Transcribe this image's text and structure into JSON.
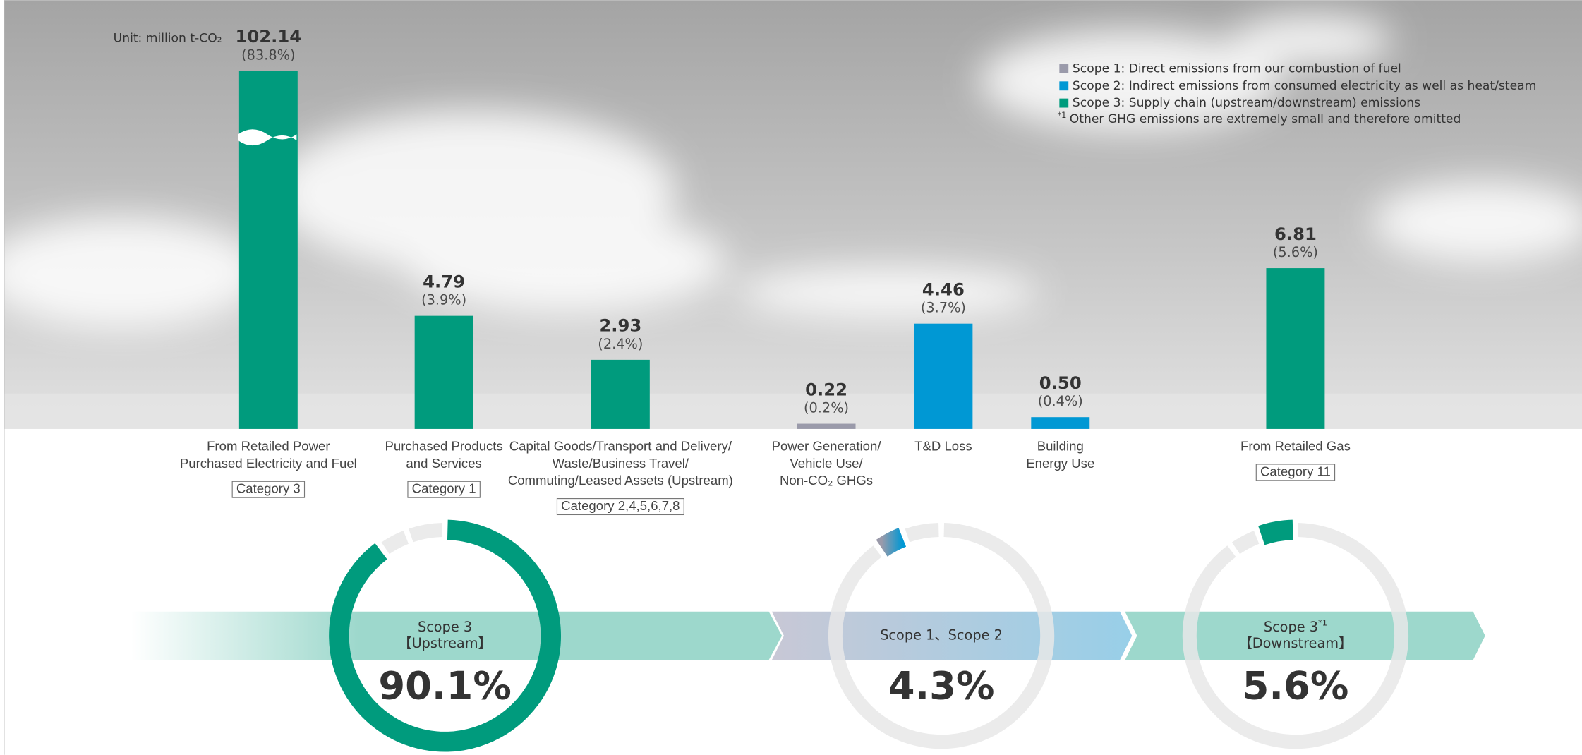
{
  "unit": "Unit: million t-CO₂",
  "legend": [
    {
      "label": "Scope 1: Direct emissions from our combustion of fuel",
      "color": "#9a9aaa"
    },
    {
      "label": "Scope 2: Indirect emissions from consumed electricity as well as heat/steam",
      "color": "#0098d4"
    },
    {
      "label": "Scope 3: Supply chain (upstream/downstream) emissions",
      "color": "#009b7d"
    }
  ],
  "footnote": {
    "mark": "*1",
    "text": "Other GHG emissions are extremely small and therefore omitted"
  },
  "chart_data": [
    {
      "type": "bar",
      "categories": [
        [
          "From Retailed Power",
          "Purchased Electricity and Fuel"
        ],
        [
          "Purchased Products",
          "and Services"
        ],
        [
          "Capital Goods/Transport and Delivery/",
          "Waste/Business Travel/",
          "Commuting/Leased Assets (Upstream)"
        ],
        [
          "Power Generation/",
          "Vehicle Use/",
          "Non-CO₂ GHGs"
        ],
        [
          "T&D Loss"
        ],
        [
          "Building",
          "Energy Use"
        ],
        [
          "From Retailed Gas"
        ]
      ],
      "tags": [
        "Category 3",
        "Category 1",
        "Category 2,4,5,6,7,8",
        null,
        null,
        null,
        "Category 11"
      ],
      "values": [
        102.14,
        4.79,
        2.93,
        0.22,
        4.46,
        0.5,
        6.81
      ],
      "value_labels": [
        "102.14",
        "4.79",
        "2.93",
        "0.22",
        "4.46",
        "0.50",
        "6.81"
      ],
      "share_labels": [
        "(83.8%)",
        "(3.9%)",
        "(2.4%)",
        "(0.2%)",
        "(3.7%)",
        "(0.4%)",
        "(5.6%)"
      ],
      "colors": [
        "#009b7d",
        "#009b7d",
        "#009b7d",
        "#9a9aaa",
        "#0098d4",
        "#0098d4",
        "#009b7d"
      ]
    },
    {
      "type": "donut",
      "segments": [
        {
          "lines": [
            "Scope 3",
            "【Upstream】"
          ],
          "value": 90.1,
          "value_label": "90.1%",
          "color": "#009b7d"
        },
        {
          "lines": [
            "Scope 1、Scope 2"
          ],
          "value": 4.3,
          "value_label": "4.3%",
          "color": "url(#g12)"
        },
        {
          "lines": [
            "Scope 3",
            "【Downstream】"
          ],
          "note_mark": "*1",
          "value": 5.6,
          "value_label": "5.6%",
          "color": "#009b7d"
        }
      ]
    }
  ]
}
